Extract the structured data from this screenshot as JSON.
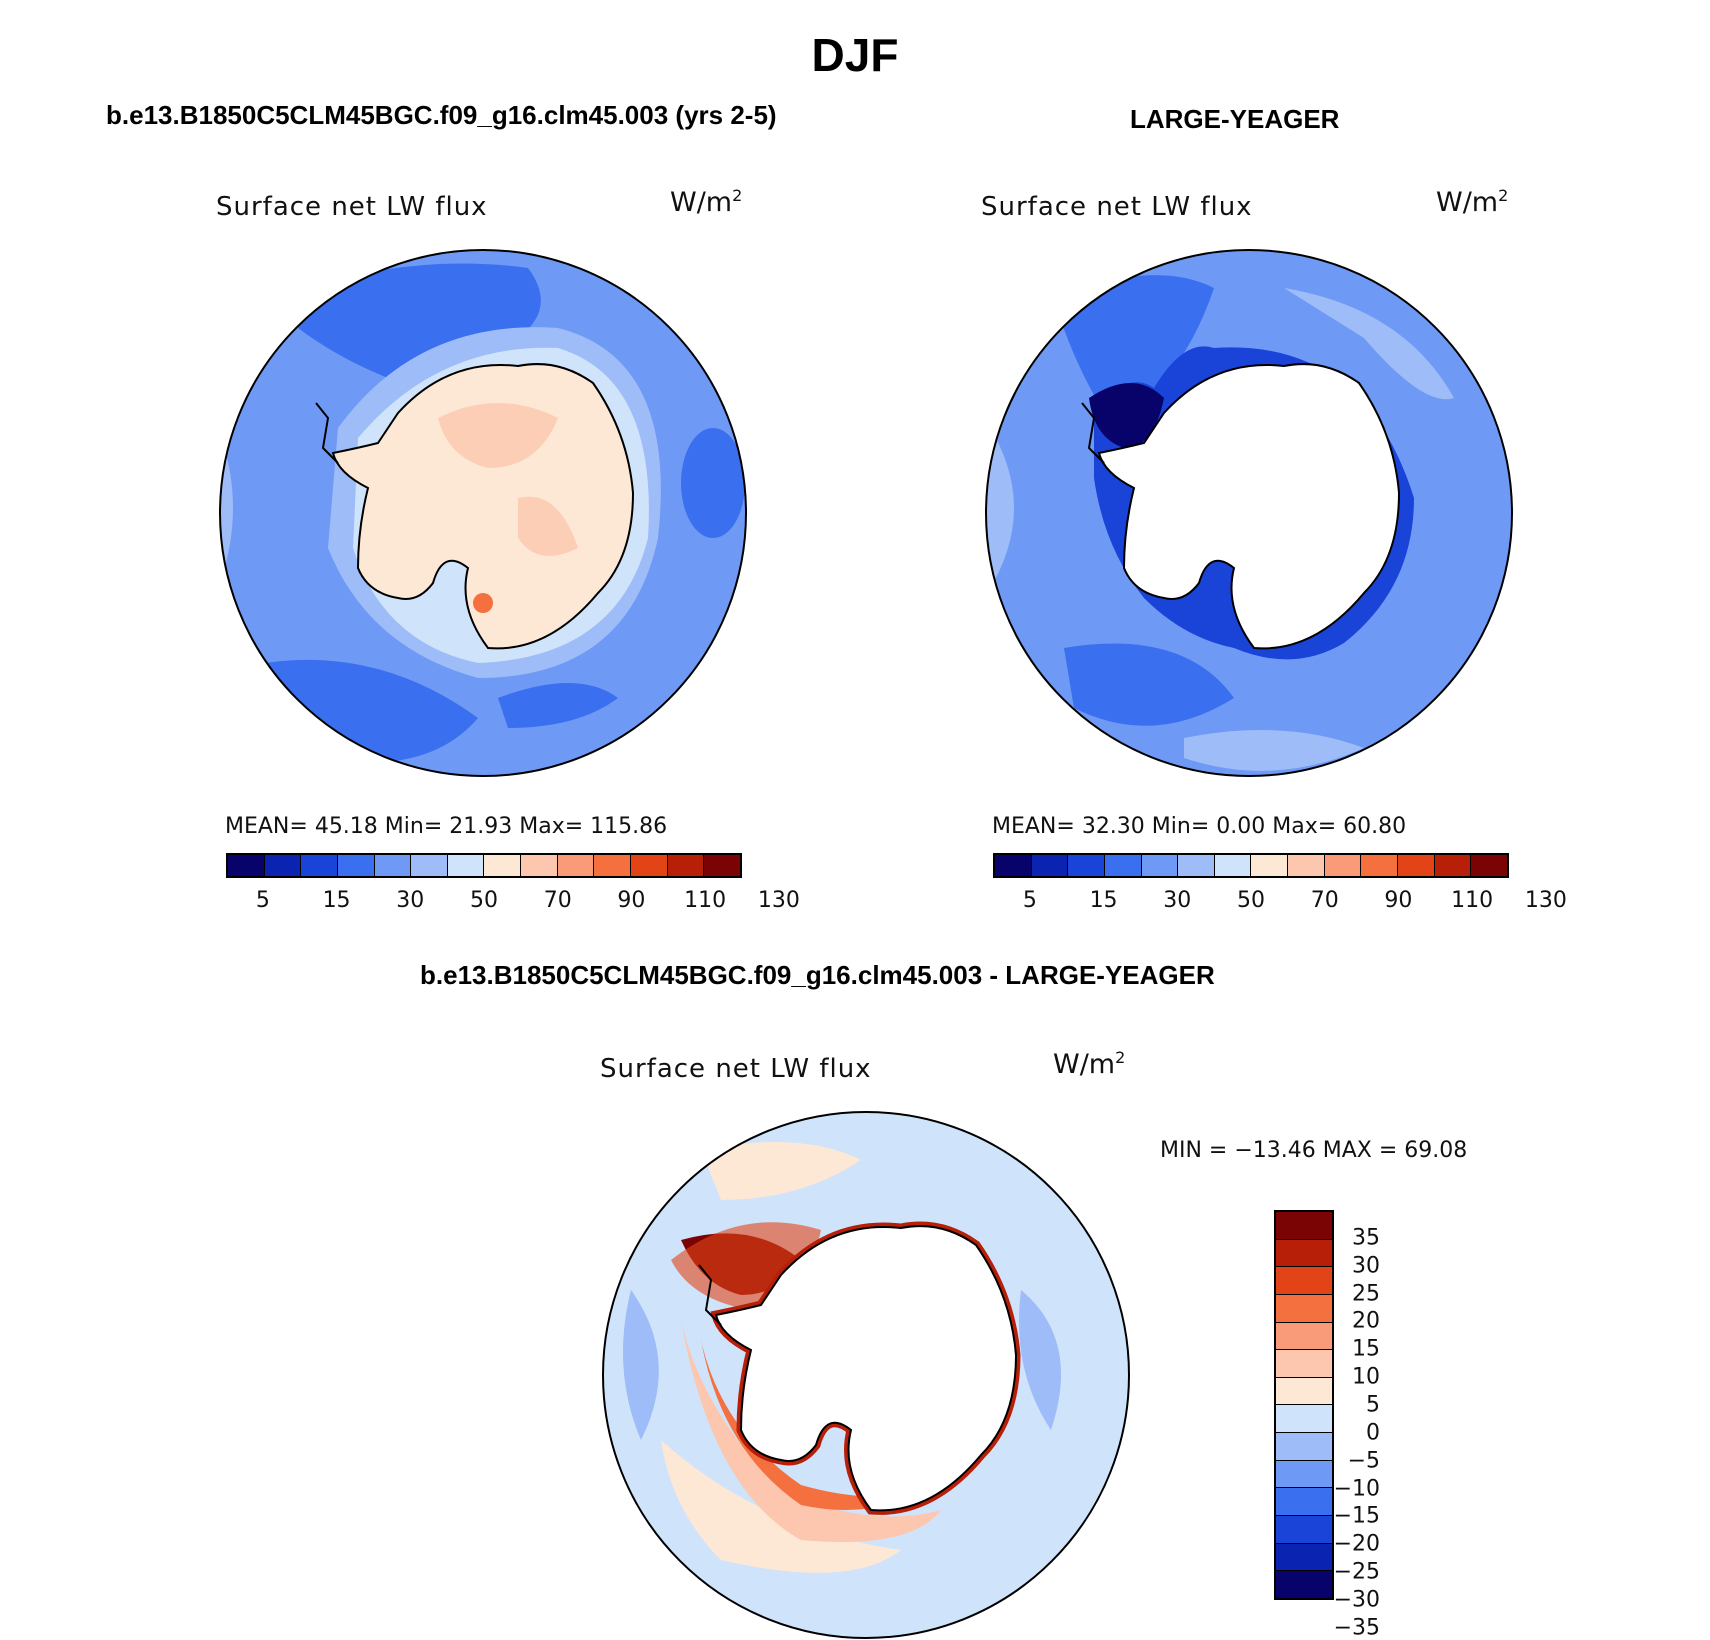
{
  "figure": {
    "title": "DJF"
  },
  "panels": {
    "model": {
      "title": "b.e13.B1850C5CLM45BGC.f09_g16.clm45.003 (yrs 2-5)",
      "subtitle": "Surface net LW flux",
      "units": "W/m",
      "units_exp": "2",
      "stats": "MEAN=   45.18   Min=   21.93   Max=  115.86"
    },
    "obs": {
      "title": "LARGE-YEAGER",
      "subtitle": "Surface net LW flux",
      "units": "W/m",
      "units_exp": "2",
      "stats": "MEAN=   32.30   Min=     0.00   Max=   60.80"
    },
    "diff": {
      "title": "b.e13.B1850C5CLM45BGC.f09_g16.clm45.003 - LARGE-YEAGER",
      "subtitle": "Surface net LW flux",
      "units": "W/m",
      "units_exp": "2",
      "stats": "MIN = −13.46 MAX =   69.08"
    }
  },
  "colorbar_top": {
    "tick_labels": [
      "5",
      "15",
      "30",
      "50",
      "70",
      "90",
      "110",
      "130"
    ],
    "colors": [
      "#08036b",
      "#0a23b0",
      "#1a43d8",
      "#3a6ff0",
      "#6e9af5",
      "#9dbcf8",
      "#cfe3fb",
      "#fde8d6",
      "#fcc7ae",
      "#f99b78",
      "#f4703f",
      "#e24417",
      "#b81f08",
      "#7a0403"
    ]
  },
  "colorbar_diff": {
    "tick_labels": [
      "35",
      "30",
      "25",
      "20",
      "15",
      "10",
      "5",
      "0",
      "−5",
      "−10",
      "−15",
      "−20",
      "−25",
      "−30",
      "−35"
    ],
    "colors": [
      "#7a0403",
      "#b81f08",
      "#e24417",
      "#f4703f",
      "#f99b78",
      "#fcc7ae",
      "#fde8d6",
      "#cfe3fb",
      "#9dbcf8",
      "#6e9af5",
      "#3a6ff0",
      "#1a43d8",
      "#0a23b0",
      "#08036b"
    ]
  }
}
